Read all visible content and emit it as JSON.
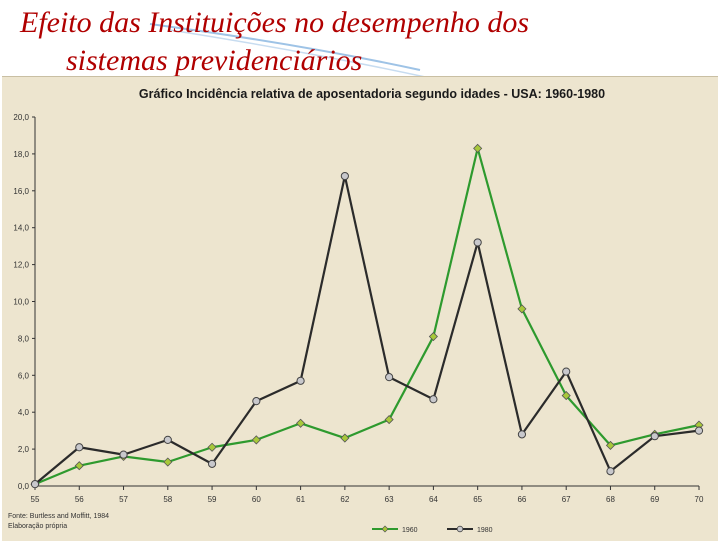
{
  "slide": {
    "title_line1": "Efeito das Instituições no desempenho dos",
    "title_line2": "sistemas previdenciários"
  },
  "colors": {
    "title": "#b00000",
    "panel_bg": "#ede5cf",
    "series_1960": "#2e9a2e",
    "series_1960_marker": "#a8c83a",
    "series_1980": "#2b2b2b",
    "series_1980_marker": "#c8c8cc"
  },
  "chart_data": {
    "type": "line",
    "title": "Gráfico Incidência relativa de aposentadoria segundo idades - USA: 1960-1980",
    "xlabel": "",
    "ylabel": "",
    "categories": [
      "55",
      "56",
      "57",
      "58",
      "59",
      "60",
      "61",
      "62",
      "63",
      "64",
      "65",
      "66",
      "67",
      "68",
      "69",
      "70"
    ],
    "ylim": [
      0,
      20
    ],
    "yticks": [
      "0,0",
      "2,0",
      "4,0",
      "6,0",
      "8,0",
      "10,0",
      "12,0",
      "14,0",
      "16,0",
      "18,0",
      "20,0"
    ],
    "grid": false,
    "legend_position": "bottom",
    "series": [
      {
        "name": "1960",
        "values": [
          0.1,
          1.1,
          1.6,
          1.3,
          2.1,
          2.5,
          3.4,
          2.6,
          3.6,
          8.1,
          18.3,
          9.6,
          4.9,
          2.2,
          2.8,
          3.3
        ]
      },
      {
        "name": "1980",
        "values": [
          0.1,
          2.1,
          1.7,
          2.5,
          1.2,
          4.6,
          5.7,
          16.8,
          5.9,
          4.7,
          13.2,
          2.8,
          6.2,
          0.8,
          2.7,
          3.0
        ]
      }
    ],
    "source_line1": "Fonte: Burtless and Moffitt, 1984",
    "source_line2": "Elaboração própria"
  }
}
